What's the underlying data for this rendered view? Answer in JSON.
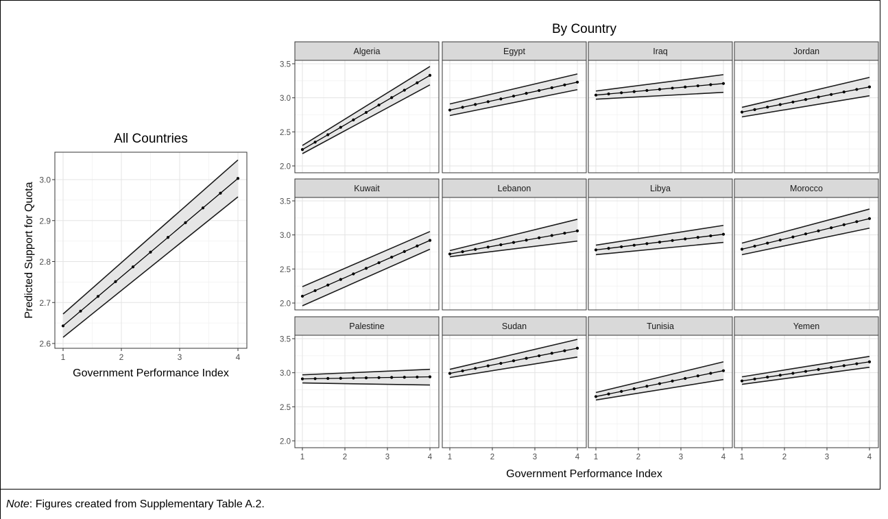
{
  "note": {
    "label": "Note",
    "text": ": Figures created from Supplementary Table A.2."
  },
  "chart_data": [
    {
      "type": "line",
      "title": "All Countries",
      "xlabel": "Government Performance Index",
      "ylabel": "Predicted Support for Quota",
      "xlim": [
        1,
        4
      ],
      "ylim": [
        2.6,
        3.05
      ],
      "xticks": [
        1,
        2,
        3,
        4
      ],
      "yticks": [
        2.6,
        2.7,
        2.8,
        2.9,
        3.0
      ],
      "ytick_labels": [
        "2.6",
        "2.7",
        "2.8",
        "2.9",
        "3.0"
      ],
      "grid": true,
      "series": [
        {
          "estimate": [
            2.643,
            3.003
          ],
          "lower": [
            2.615,
            2.958
          ],
          "upper": [
            2.672,
            3.048
          ]
        }
      ]
    },
    {
      "type": "line",
      "title": "By Country",
      "xlabel": "Government Performance Index",
      "xlim": [
        1,
        4
      ],
      "ylim": [
        1.9,
        3.6
      ],
      "xticks": [
        1,
        2,
        3,
        4
      ],
      "yticks": [
        2.0,
        2.5,
        3.0,
        3.5
      ],
      "ytick_labels": [
        "2.0",
        "2.5",
        "3.0",
        "3.5"
      ],
      "grid": true,
      "panels": [
        {
          "name": "Algeria",
          "estimate": [
            2.24,
            3.33
          ],
          "lower": [
            2.18,
            3.19
          ],
          "upper": [
            2.3,
            3.46
          ]
        },
        {
          "name": "Egypt",
          "estimate": [
            2.82,
            3.23
          ],
          "lower": [
            2.74,
            3.12
          ],
          "upper": [
            2.91,
            3.35
          ]
        },
        {
          "name": "Iraq",
          "estimate": [
            3.04,
            3.21
          ],
          "lower": [
            2.98,
            3.08
          ],
          "upper": [
            3.1,
            3.34
          ]
        },
        {
          "name": "Jordan",
          "estimate": [
            2.79,
            3.16
          ],
          "lower": [
            2.72,
            3.03
          ],
          "upper": [
            2.86,
            3.3
          ]
        },
        {
          "name": "Kuwait",
          "estimate": [
            2.1,
            2.92
          ],
          "lower": [
            1.96,
            2.79
          ],
          "upper": [
            2.24,
            3.05
          ]
        },
        {
          "name": "Lebanon",
          "estimate": [
            2.72,
            3.06
          ],
          "lower": [
            2.68,
            2.91
          ],
          "upper": [
            2.77,
            3.23
          ]
        },
        {
          "name": "Libya",
          "estimate": [
            2.78,
            3.01
          ],
          "lower": [
            2.71,
            2.89
          ],
          "upper": [
            2.85,
            3.14
          ]
        },
        {
          "name": "Morocco",
          "estimate": [
            2.79,
            3.24
          ],
          "lower": [
            2.71,
            3.1
          ],
          "upper": [
            2.88,
            3.38
          ]
        },
        {
          "name": "Palestine",
          "estimate": [
            2.91,
            2.94
          ],
          "lower": [
            2.85,
            2.82
          ],
          "upper": [
            2.97,
            3.05
          ]
        },
        {
          "name": "Sudan",
          "estimate": [
            2.99,
            3.36
          ],
          "lower": [
            2.93,
            3.23
          ],
          "upper": [
            3.05,
            3.49
          ]
        },
        {
          "name": "Tunisia",
          "estimate": [
            2.65,
            3.03
          ],
          "lower": [
            2.6,
            2.9
          ],
          "upper": [
            2.71,
            3.16
          ]
        },
        {
          "name": "Yemen",
          "estimate": [
            2.88,
            3.16
          ],
          "lower": [
            2.83,
            3.08
          ],
          "upper": [
            2.94,
            3.24
          ]
        }
      ]
    }
  ]
}
